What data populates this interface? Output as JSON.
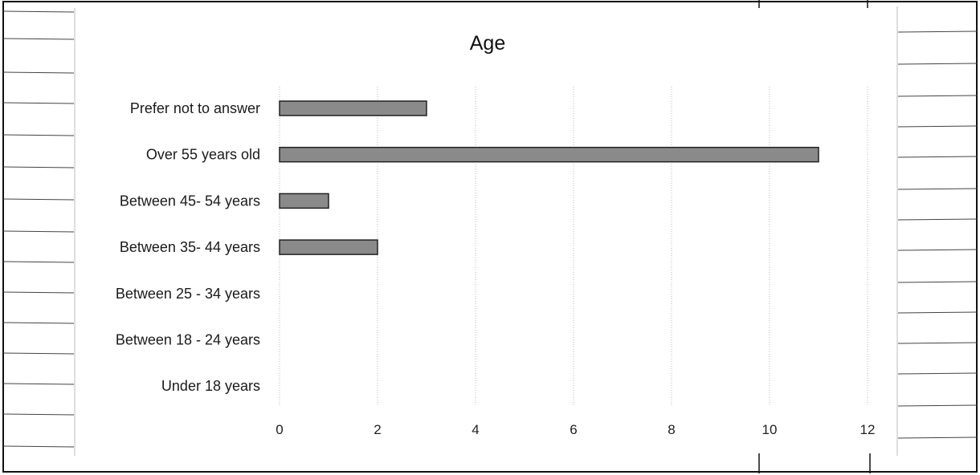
{
  "chart_data": {
    "type": "bar",
    "orientation": "horizontal",
    "title": "Age",
    "xlabel": "",
    "ylabel": "",
    "categories": [
      "Prefer not to answer",
      "Over 55 years old",
      "Between 45- 54 years",
      "Between 35- 44 years",
      "Between 25 - 34 years",
      "Between 18 - 24 years",
      "Under 18 years"
    ],
    "values": [
      3,
      11,
      1,
      2,
      0,
      0,
      0
    ],
    "xlim": [
      0,
      12
    ],
    "xticks": [
      "0",
      "2",
      "4",
      "6",
      "8",
      "10",
      "12"
    ],
    "grid": true,
    "legend": "none",
    "bar_color": "#8a8a8a",
    "bar_edge_color": "#222222"
  }
}
